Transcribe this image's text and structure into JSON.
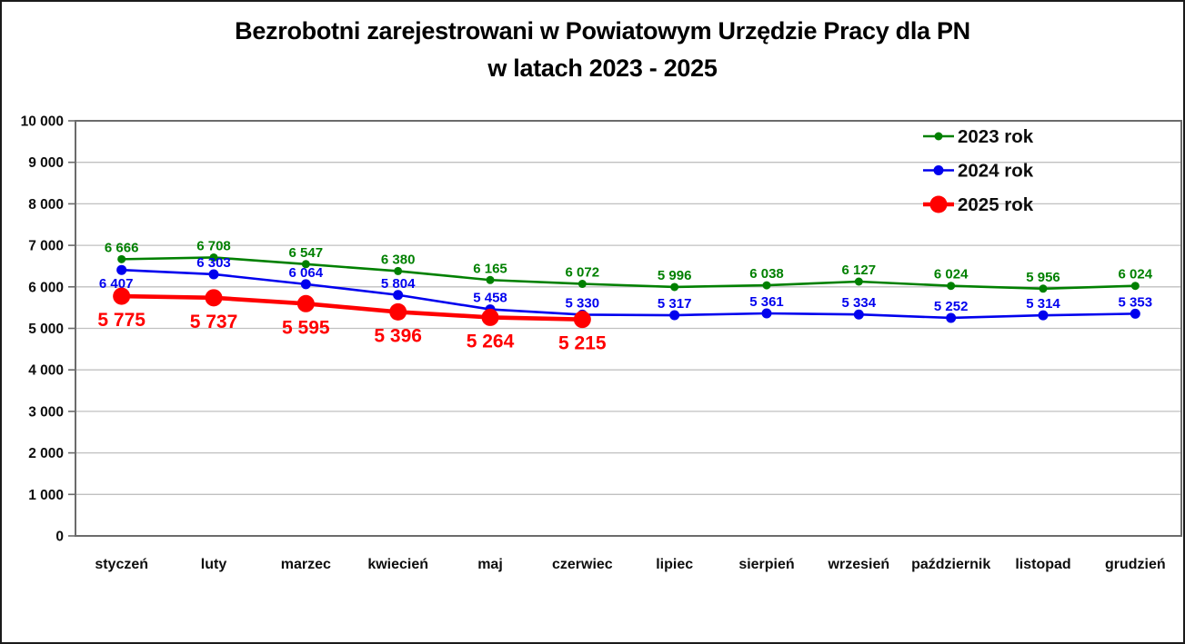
{
  "title": {
    "line1": "Bezrobotni zarejestrowani w Powiatowym Urzędzie Pracy dla PN",
    "line2": "w latach 2023 - 2025"
  },
  "chart_data": {
    "type": "line",
    "title": "Bezrobotni zarejestrowani w Powiatowym Urzędzie Pracy dla PN w latach 2023 - 2025",
    "xlabel": "",
    "ylabel": "",
    "categories": [
      "styczeń",
      "luty",
      "marzec",
      "kwiecień",
      "maj",
      "czerwiec",
      "lipiec",
      "sierpień",
      "wrzesień",
      "październik",
      "listopad",
      "grudzień"
    ],
    "series": [
      {
        "name": "2023 rok",
        "color": "#008000",
        "values": [
          6666,
          6708,
          6547,
          6380,
          6165,
          6072,
          5996,
          6038,
          6127,
          6024,
          5956,
          6024
        ]
      },
      {
        "name": "2024 rok",
        "color": "#0000ee",
        "values": [
          6407,
          6303,
          6064,
          5804,
          5458,
          5330,
          5317,
          5361,
          5334,
          5252,
          5314,
          5353
        ]
      },
      {
        "name": "2025 rok",
        "color": "#ff0000",
        "values": [
          5775,
          5737,
          5595,
          5396,
          5264,
          5215
        ]
      }
    ],
    "y_axis": {
      "min": 0,
      "max": 10000,
      "step": 1000,
      "tick_labels": [
        "0",
        "1 000",
        "2 000",
        "3 000",
        "4 000",
        "5 000",
        "6 000",
        "7 000",
        "8 000",
        "9 000",
        "10 000"
      ]
    },
    "ylim": [
      0,
      10000
    ],
    "grid": true,
    "data_labels": true,
    "legend_position": "top-right",
    "colors": {
      "gridline": "#c0c0c0",
      "plot_border": "#6b6b6b",
      "axis_text": "#0d0d0d",
      "legend_text": "#0d0d0d"
    }
  }
}
